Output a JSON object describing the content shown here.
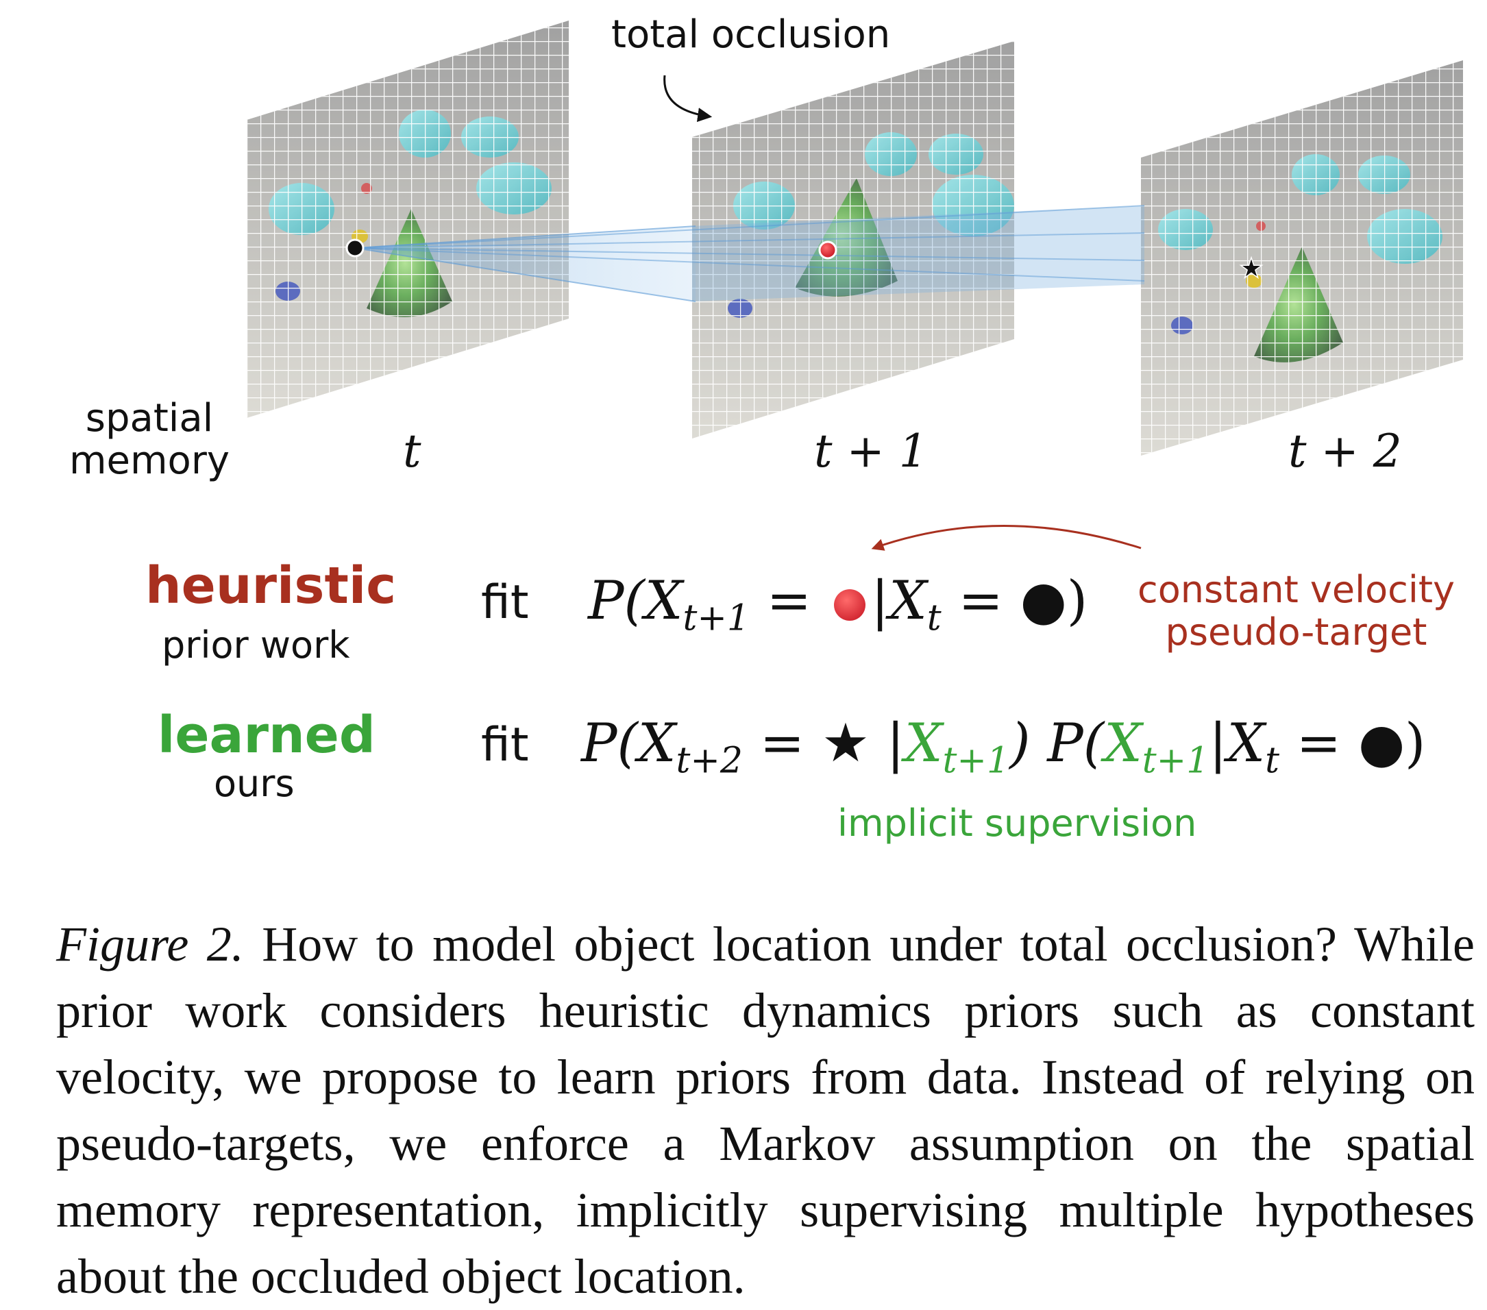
{
  "labels": {
    "total_occlusion": "total occlusion",
    "spatial_memory_line1": "spatial",
    "spatial_memory_line2": "memory",
    "frame_t": "t",
    "frame_t1": "t + 1",
    "frame_t2": "t + 2"
  },
  "rows": {
    "heuristic": {
      "title": "heuristic",
      "subtitle": "prior work",
      "fit": "fit",
      "equation_prefix": "P(X",
      "equation_sub1": "t+1",
      "equation_mid": " = ",
      "equation_bar": "|X",
      "equation_sub2": "t",
      "equation_end": " = ●)",
      "annotation_line1": "constant velocity",
      "annotation_line2": "pseudo-target"
    },
    "learned": {
      "title": "learned",
      "subtitle": "ours",
      "fit": "fit",
      "eq_a": "P(X",
      "eq_a_sub": "t+2",
      "eq_b": " = ★ |",
      "eq_c": "X",
      "eq_c_sub": "t+1",
      "eq_d": ") P(",
      "eq_e": "X",
      "eq_e_sub": "t+1",
      "eq_f": "|X",
      "eq_f_sub": "t",
      "eq_g": " = ●)",
      "annotation": "implicit supervision"
    }
  },
  "caption": {
    "label": "Figure 2.",
    "text": " How to model object location under total occlusion? While prior work considers heuristic dynamics priors such as constant velocity, we propose to learn priors from data. Instead of relying on pseudo-targets, we enforce a Markov assumption on the spatial memory representation, implicitly supervising multiple hypotheses about the occluded object location."
  },
  "colors": {
    "heuristic": "#a8301f",
    "learned": "#3aa53a",
    "beam": "#6ea6d8"
  }
}
